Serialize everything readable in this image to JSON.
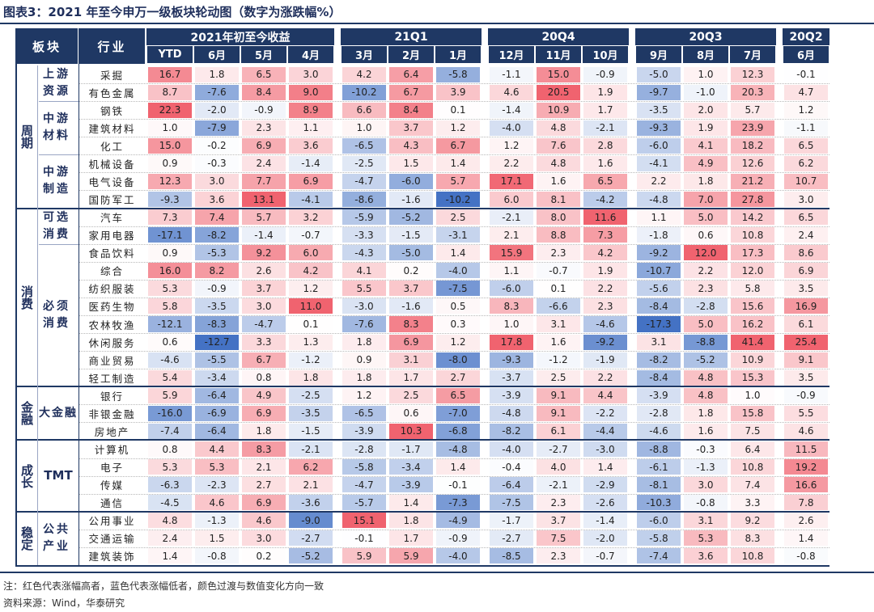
{
  "title": "图表3：2021 年至今申万一级板块轮动图（数字为涨跌幅%）",
  "header": {
    "col_sector": "板块",
    "col_industry": "行业",
    "groups": [
      "2021年初至今收益",
      "21Q1",
      "20Q4",
      "20Q3",
      "20Q2"
    ],
    "months": [
      "YTD",
      "6月",
      "5月",
      "4月",
      "3月",
      "2月",
      "1月",
      "12月",
      "11月",
      "10月",
      "9月",
      "8月",
      "7月",
      "6月"
    ]
  },
  "sections": [
    {
      "name": "周期",
      "groups": [
        {
          "name": "上游资源",
          "rows": [
            0,
            1
          ]
        },
        {
          "name": "中游材料",
          "rows": [
            2,
            3,
            4
          ]
        },
        {
          "name": "中游制造",
          "rows": [
            5,
            6,
            7
          ]
        }
      ]
    },
    {
      "name": "消费",
      "groups": [
        {
          "name": "可选消费",
          "rows": [
            8,
            9
          ]
        },
        {
          "name": "必须消费",
          "rows": [
            10,
            11,
            12,
            13,
            14,
            15,
            16,
            17
          ]
        }
      ]
    },
    {
      "name": "金融",
      "groups": [
        {
          "name": "大金融",
          "rows": [
            18,
            19,
            20
          ]
        }
      ]
    },
    {
      "name": "成长",
      "groups": [
        {
          "name": "TMT",
          "rows": [
            21,
            22,
            23,
            24
          ]
        }
      ]
    },
    {
      "name": "稳定",
      "groups": [
        {
          "name": "公共产业",
          "rows": [
            25,
            26,
            27
          ]
        }
      ]
    }
  ],
  "chart_data": {
    "type": "heatmap",
    "title": "2021 年至今申万一级板块轮动图（数字为涨跌幅%）",
    "x": [
      "YTD",
      "6月",
      "5月",
      "4月",
      "3月",
      "2月",
      "1月",
      "12月",
      "11月",
      "10月",
      "9月",
      "8月",
      "7月",
      "6月"
    ],
    "rows": [
      {
        "industry": "采掘",
        "values": [
          "16.7",
          "1.8",
          "6.5",
          "3.0",
          "4.2",
          "6.4",
          "-5.8",
          "-1.1",
          "15.0",
          "-0.9",
          "-5.0",
          "1.0",
          "12.3",
          "-0.1"
        ]
      },
      {
        "industry": "有色金属",
        "values": [
          "8.7",
          "-7.6",
          "8.4",
          "9.0",
          "-10.2",
          "6.7",
          "3.9",
          "4.6",
          "20.5",
          "1.9",
          "-9.7",
          "-1.0",
          "20.3",
          "4.7"
        ]
      },
      {
        "industry": "钢铁",
        "values": [
          "22.3",
          "-2.0",
          "-0.9",
          "8.9",
          "6.6",
          "8.4",
          "0.1",
          "-1.4",
          "10.9",
          "1.7",
          "-3.5",
          "2.0",
          "5.7",
          "1.2"
        ]
      },
      {
        "industry": "建筑材料",
        "values": [
          "1.0",
          "-7.9",
          "2.3",
          "1.1",
          "1.0",
          "3.7",
          "1.2",
          "-4.0",
          "4.8",
          "-2.1",
          "-9.3",
          "1.9",
          "23.9",
          "-1.1"
        ]
      },
      {
        "industry": "化工",
        "values": [
          "15.0",
          "-0.2",
          "6.9",
          "3.6",
          "-6.5",
          "4.3",
          "6.7",
          "1.2",
          "7.6",
          "2.8",
          "-6.0",
          "4.1",
          "18.2",
          "6.5"
        ]
      },
      {
        "industry": "机械设备",
        "values": [
          "0.9",
          "-0.3",
          "2.4",
          "-1.4",
          "-2.5",
          "1.5",
          "1.4",
          "2.2",
          "4.8",
          "1.6",
          "-4.1",
          "4.9",
          "12.6",
          "6.2"
        ]
      },
      {
        "industry": "电气设备",
        "values": [
          "12.3",
          "3.0",
          "7.7",
          "6.9",
          "-4.7",
          "-6.0",
          "5.7",
          "17.1",
          "1.6",
          "6.5",
          "2.2",
          "1.8",
          "21.2",
          "10.7"
        ]
      },
      {
        "industry": "国防军工",
        "values": [
          "-9.3",
          "3.6",
          "13.1",
          "-4.1",
          "-8.6",
          "-1.6",
          "-10.2",
          "6.0",
          "8.1",
          "-4.2",
          "-4.8",
          "7.0",
          "27.8",
          "3.0"
        ]
      },
      {
        "industry": "汽车",
        "values": [
          "7.3",
          "7.4",
          "5.7",
          "3.2",
          "-5.9",
          "-5.2",
          "2.5",
          "-2.1",
          "8.0",
          "11.6",
          "1.1",
          "5.0",
          "14.2",
          "6.5"
        ]
      },
      {
        "industry": "家用电器",
        "values": [
          "-17.1",
          "-8.2",
          "-1.4",
          "-0.7",
          "-3.3",
          "-1.5",
          "-3.1",
          "2.1",
          "8.8",
          "7.3",
          "-1.8",
          "0.6",
          "10.8",
          "2.4"
        ]
      },
      {
        "industry": "食品饮料",
        "values": [
          "0.9",
          "-5.3",
          "9.2",
          "6.0",
          "-4.3",
          "-5.0",
          "1.4",
          "15.9",
          "2.3",
          "4.2",
          "-9.2",
          "12.0",
          "17.3",
          "8.6"
        ]
      },
      {
        "industry": "综合",
        "values": [
          "16.0",
          "8.2",
          "2.6",
          "4.2",
          "4.1",
          "0.2",
          "-4.0",
          "1.1",
          "-0.7",
          "1.9",
          "-10.7",
          "2.2",
          "12.0",
          "6.9"
        ]
      },
      {
        "industry": "纺织服装",
        "values": [
          "5.3",
          "-0.9",
          "3.7",
          "1.2",
          "5.5",
          "3.7",
          "-7.5",
          "-6.0",
          "0.1",
          "2.2",
          "-5.6",
          "2.3",
          "5.8",
          "3.5"
        ]
      },
      {
        "industry": "医药生物",
        "values": [
          "5.8",
          "-3.5",
          "3.0",
          "11.0",
          "-3.0",
          "-1.6",
          "0.5",
          "8.3",
          "-6.6",
          "2.3",
          "-8.4",
          "-2.8",
          "15.6",
          "16.9"
        ]
      },
      {
        "industry": "农林牧渔",
        "values": [
          "-12.1",
          "-8.3",
          "-4.7",
          "0.1",
          "-7.6",
          "8.3",
          "0.3",
          "1.0",
          "3.1",
          "-4.6",
          "-17.3",
          "5.0",
          "16.2",
          "6.1"
        ]
      },
      {
        "industry": "休闲服务",
        "values": [
          "0.6",
          "-12.7",
          "3.3",
          "1.3",
          "1.8",
          "6.9",
          "1.2",
          "17.8",
          "1.6",
          "-9.2",
          "3.1",
          "-8.8",
          "41.4",
          "25.4"
        ]
      },
      {
        "industry": "商业贸易",
        "values": [
          "-4.6",
          "-5.5",
          "6.7",
          "-1.2",
          "0.9",
          "3.1",
          "-8.0",
          "-9.3",
          "-1.2",
          "-1.9",
          "-8.2",
          "-5.2",
          "10.9",
          "9.1"
        ]
      },
      {
        "industry": "轻工制造",
        "values": [
          "5.4",
          "-3.4",
          "0.8",
          "1.8",
          "1.8",
          "1.7",
          "2.7",
          "-3.7",
          "2.5",
          "2.2",
          "-8.4",
          "4.8",
          "15.3",
          "3.5"
        ]
      },
      {
        "industry": "银行",
        "values": [
          "5.9",
          "-6.4",
          "4.9",
          "-2.5",
          "1.2",
          "2.5",
          "6.5",
          "-3.9",
          "9.1",
          "4.4",
          "-3.9",
          "4.8",
          "1.0",
          "-0.9"
        ]
      },
      {
        "industry": "非银金融",
        "values": [
          "-16.0",
          "-6.9",
          "6.9",
          "-3.5",
          "-6.5",
          "0.6",
          "-7.0",
          "-4.8",
          "9.1",
          "-2.2",
          "-2.8",
          "1.8",
          "15.8",
          "5.5"
        ]
      },
      {
        "industry": "房地产",
        "values": [
          "-7.4",
          "-6.4",
          "1.8",
          "-1.5",
          "-3.9",
          "10.3",
          "-6.8",
          "-8.2",
          "6.1",
          "-4.4",
          "-4.6",
          "1.6",
          "7.5",
          "4.6"
        ]
      },
      {
        "industry": "计算机",
        "values": [
          "0.8",
          "4.4",
          "8.3",
          "-2.1",
          "-2.8",
          "-1.7",
          "-4.8",
          "-4.0",
          "-2.7",
          "-3.0",
          "-8.8",
          "-0.3",
          "6.4",
          "11.5"
        ]
      },
      {
        "industry": "电子",
        "values": [
          "5.3",
          "5.3",
          "2.1",
          "6.2",
          "-5.8",
          "-3.4",
          "1.4",
          "-0.4",
          "4.0",
          "1.4",
          "-6.1",
          "-1.3",
          "10.8",
          "19.2"
        ]
      },
      {
        "industry": "传媒",
        "values": [
          "-6.3",
          "-2.3",
          "2.7",
          "2.1",
          "-4.7",
          "-3.9",
          "-0.1",
          "-6.4",
          "-2.1",
          "-2.9",
          "-8.1",
          "3.0",
          "7.4",
          "16.6"
        ]
      },
      {
        "industry": "通信",
        "values": [
          "-4.5",
          "4.6",
          "6.9",
          "-3.6",
          "-5.7",
          "1.4",
          "-7.3",
          "-7.5",
          "2.3",
          "-2.6",
          "-10.3",
          "-0.8",
          "3.3",
          "7.8"
        ]
      },
      {
        "industry": "公用事业",
        "values": [
          "4.8",
          "-1.3",
          "4.6",
          "-9.0",
          "15.1",
          "1.8",
          "-4.9",
          "-1.7",
          "3.7",
          "-1.4",
          "-6.0",
          "3.1",
          "9.2",
          "2.6"
        ]
      },
      {
        "industry": "交通运输",
        "values": [
          "2.4",
          "1.5",
          "3.0",
          "-2.7",
          "-0.1",
          "1.7",
          "-0.9",
          "-2.7",
          "7.5",
          "-2.0",
          "-5.8",
          "5.3",
          "8.3",
          "1.4"
        ]
      },
      {
        "industry": "建筑装饰",
        "values": [
          "1.4",
          "-0.8",
          "0.2",
          "-5.2",
          "5.9",
          "5.9",
          "-4.0",
          "-8.5",
          "2.3",
          "-0.7",
          "-7.4",
          "3.6",
          "10.8",
          "-0.8"
        ]
      }
    ]
  },
  "notes": {
    "note": "注：红色代表涨幅高者，蓝色代表涨幅低者，颜色过渡与数值变化方向一致",
    "source": "资料来源：Wind，华泰研究"
  },
  "colors": {
    "header": "#1f3864",
    "red": "#f0636f",
    "blue": "#4472c4"
  }
}
